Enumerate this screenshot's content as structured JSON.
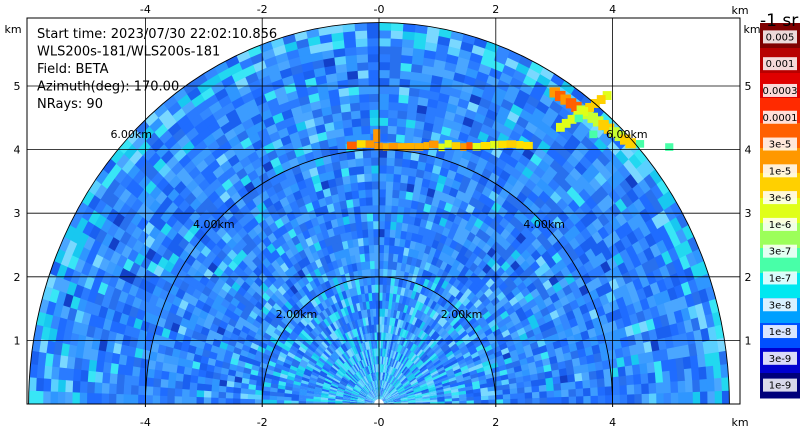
{
  "chart_data": {
    "type": "heatmap",
    "units": "km",
    "info_lines": [
      "Start time: 2023/07/30 22:02:10.856",
      "WLS200s-181/WLS200s-181",
      "Field: BETA",
      "Azimuth(deg): 170.00",
      "NRays: 90"
    ],
    "xlim": [
      -6.1,
      6.1
    ],
    "ylim": [
      0,
      5.9
    ],
    "x_ticks": [
      "-4",
      "-2",
      "-0",
      "2",
      "4"
    ],
    "x_tick_values": [
      -4,
      -2,
      0,
      2,
      4
    ],
    "y_ticks": [
      "1",
      "2",
      "3",
      "4",
      "5"
    ],
    "y_tick_values": [
      1,
      2,
      3,
      4,
      5
    ],
    "grid": true,
    "range_rings": [
      {
        "radius": 2,
        "label": "2.00km"
      },
      {
        "radius": 4,
        "label": "4.00km"
      },
      {
        "radius": 6,
        "label": "6.00km"
      }
    ],
    "sector_deg": [
      0,
      180
    ],
    "max_range_km": 6.0,
    "features": [
      {
        "name": "aerosol layer",
        "height_km": 4.05,
        "x_range_km": [
          -0.55,
          2.6
        ],
        "level": "1e-5"
      },
      {
        "name": "cloud band",
        "from_km": [
          3.0,
          4.9
        ],
        "to_km": [
          4.3,
          4.1
        ],
        "level": "3e-5"
      }
    ],
    "colorbar": {
      "title": "-1 sr",
      "labels": [
        "0.005",
        "0.001",
        "0.0003",
        "0.0001",
        "3e-5",
        "1e-5",
        "3e-6",
        "1e-6",
        "3e-7",
        "1e-7",
        "3e-8",
        "1e-8",
        "3e-9",
        "1e-9"
      ],
      "colors": [
        "#800000",
        "#b80000",
        "#e00000",
        "#ff2a00",
        "#ff6000",
        "#ff9800",
        "#ffd000",
        "#e0ff18",
        "#9cff5a",
        "#48ffa8",
        "#00e8f0",
        "#00a0ff",
        "#0050ff",
        "#0000d0",
        "#00007a"
      ]
    }
  }
}
